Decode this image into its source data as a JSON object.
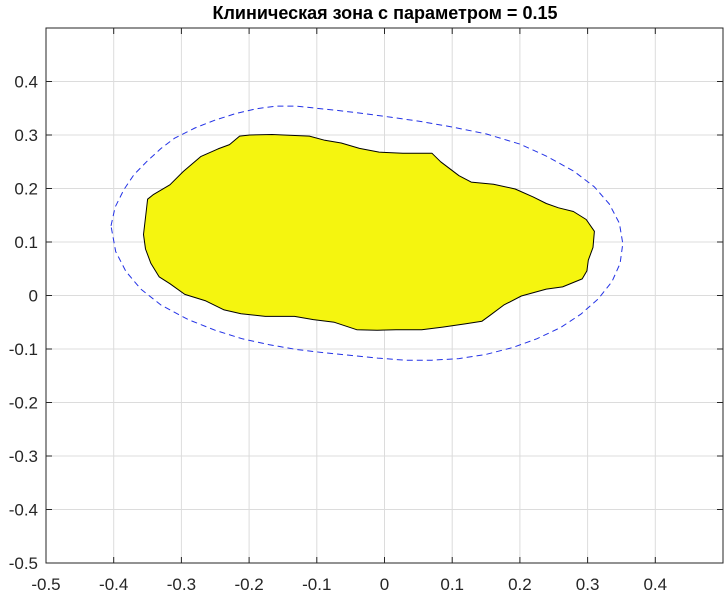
{
  "chart_data": {
    "type": "area",
    "title": "Клиническая зона с параметром = 0.15",
    "xlabel": "",
    "ylabel": "",
    "xlim": [
      -0.5,
      0.5
    ],
    "ylim": [
      -0.5,
      0.5
    ],
    "grid": true,
    "x_ticks": [
      -0.5,
      -0.4,
      -0.3,
      -0.2,
      -0.1,
      0,
      0.1,
      0.2,
      0.3,
      0.4
    ],
    "x_tick_labels": [
      "-0.5",
      "-0.4",
      "-0.3",
      "-0.2",
      "-0.1",
      "0",
      "0.1",
      "0.2",
      "0.3",
      "0.4"
    ],
    "y_ticks": [
      -0.5,
      -0.4,
      -0.3,
      -0.2,
      -0.1,
      0,
      0.1,
      0.2,
      0.3,
      0.4
    ],
    "y_tick_labels": [
      "-0.5",
      "-0.4",
      "-0.3",
      "-0.2",
      "-0.1",
      "0",
      "0.1",
      "0.2",
      "0.3",
      "0.4"
    ],
    "series": [
      {
        "kind": "filled-region",
        "color": "#f5f50f",
        "edge_color": "#000000",
        "points": [
          [
            -0.341,
            0.189
          ],
          [
            -0.317,
            0.207
          ],
          [
            -0.297,
            0.232
          ],
          [
            -0.271,
            0.26
          ],
          [
            -0.246,
            0.274
          ],
          [
            -0.229,
            0.282
          ],
          [
            -0.214,
            0.298
          ],
          [
            -0.199,
            0.3
          ],
          [
            -0.166,
            0.301
          ],
          [
            -0.111,
            0.298
          ],
          [
            -0.088,
            0.29
          ],
          [
            -0.064,
            0.285
          ],
          [
            -0.037,
            0.275
          ],
          [
            -0.008,
            0.268
          ],
          [
            0.027,
            0.266
          ],
          [
            0.07,
            0.266
          ],
          [
            0.083,
            0.25
          ],
          [
            0.11,
            0.224
          ],
          [
            0.128,
            0.212
          ],
          [
            0.161,
            0.208
          ],
          [
            0.193,
            0.199
          ],
          [
            0.22,
            0.184
          ],
          [
            0.239,
            0.172
          ],
          [
            0.257,
            0.164
          ],
          [
            0.279,
            0.157
          ],
          [
            0.298,
            0.142
          ],
          [
            0.31,
            0.12
          ],
          [
            0.308,
            0.09
          ],
          [
            0.301,
            0.066
          ],
          [
            0.299,
            0.046
          ],
          [
            0.292,
            0.031
          ],
          [
            0.263,
            0.016
          ],
          [
            0.239,
            0.012
          ],
          [
            0.202,
            -0.001
          ],
          [
            0.176,
            -0.018
          ],
          [
            0.155,
            -0.038
          ],
          [
            0.144,
            -0.048
          ],
          [
            0.119,
            -0.053
          ],
          [
            0.086,
            -0.059
          ],
          [
            0.055,
            -0.064
          ],
          [
            0.017,
            -0.064
          ],
          [
            -0.011,
            -0.065
          ],
          [
            -0.041,
            -0.064
          ],
          [
            -0.074,
            -0.05
          ],
          [
            -0.105,
            -0.045
          ],
          [
            -0.133,
            -0.039
          ],
          [
            -0.176,
            -0.039
          ],
          [
            -0.212,
            -0.034
          ],
          [
            -0.237,
            -0.027
          ],
          [
            -0.264,
            -0.01
          ],
          [
            -0.295,
            0.002
          ],
          [
            -0.317,
            0.022
          ],
          [
            -0.333,
            0.035
          ],
          [
            -0.345,
            0.06
          ],
          [
            -0.353,
            0.087
          ],
          [
            -0.356,
            0.114
          ],
          [
            -0.352,
            0.157
          ],
          [
            -0.35,
            0.18
          ]
        ]
      },
      {
        "kind": "boundary-dashed",
        "color": "#2332e6",
        "points": [
          [
            -0.404,
            0.13
          ],
          [
            -0.398,
            0.165
          ],
          [
            -0.385,
            0.198
          ],
          [
            -0.37,
            0.226
          ],
          [
            -0.35,
            0.252
          ],
          [
            -0.33,
            0.275
          ],
          [
            -0.31,
            0.294
          ],
          [
            -0.28,
            0.313
          ],
          [
            -0.25,
            0.328
          ],
          [
            -0.22,
            0.34
          ],
          [
            -0.19,
            0.349
          ],
          [
            -0.16,
            0.354
          ],
          [
            -0.13,
            0.354
          ],
          [
            -0.1,
            0.35
          ],
          [
            -0.07,
            0.346
          ],
          [
            -0.03,
            0.34
          ],
          [
            0.01,
            0.333
          ],
          [
            0.05,
            0.326
          ],
          [
            0.1,
            0.315
          ],
          [
            0.15,
            0.302
          ],
          [
            0.2,
            0.283
          ],
          [
            0.24,
            0.26
          ],
          [
            0.28,
            0.232
          ],
          [
            0.31,
            0.203
          ],
          [
            0.332,
            0.171
          ],
          [
            0.347,
            0.135
          ],
          [
            0.352,
            0.097
          ],
          [
            0.348,
            0.06
          ],
          [
            0.336,
            0.026
          ],
          [
            0.316,
            -0.006
          ],
          [
            0.29,
            -0.035
          ],
          [
            0.26,
            -0.06
          ],
          [
            0.225,
            -0.081
          ],
          [
            0.19,
            -0.097
          ],
          [
            0.15,
            -0.11
          ],
          [
            0.11,
            -0.118
          ],
          [
            0.07,
            -0.121
          ],
          [
            0.03,
            -0.121
          ],
          [
            -0.01,
            -0.117
          ],
          [
            -0.05,
            -0.112
          ],
          [
            -0.09,
            -0.107
          ],
          [
            -0.13,
            -0.101
          ],
          [
            -0.17,
            -0.092
          ],
          [
            -0.21,
            -0.081
          ],
          [
            -0.25,
            -0.065
          ],
          [
            -0.29,
            -0.045
          ],
          [
            -0.33,
            -0.018
          ],
          [
            -0.36,
            0.012
          ],
          [
            -0.382,
            0.045
          ],
          [
            -0.397,
            0.082
          ]
        ]
      }
    ]
  }
}
